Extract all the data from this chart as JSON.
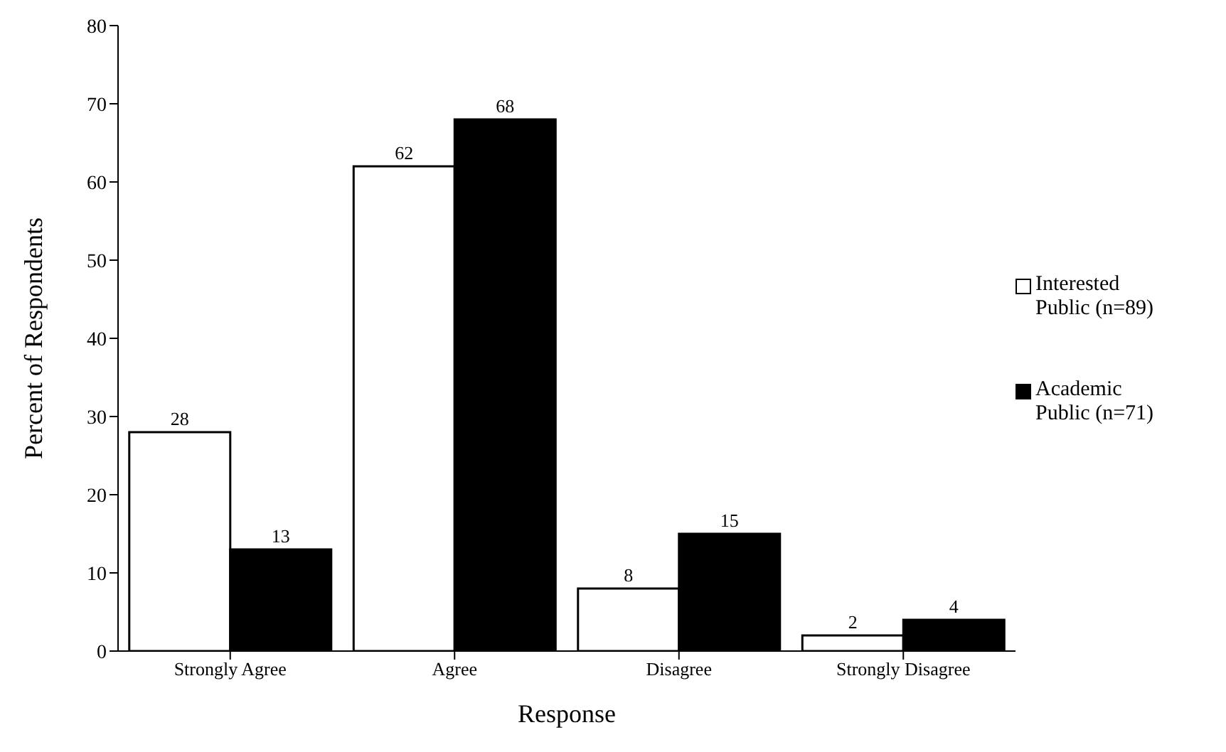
{
  "chart_data": {
    "type": "bar",
    "xlabel": "Response",
    "ylabel": "Percent of Respondents",
    "categories": [
      "Strongly Agree",
      "Agree",
      "Disagree",
      "Strongly Disagree"
    ],
    "series": [
      {
        "name": "Interested Public (n=89)",
        "color": "#ffffff",
        "values": [
          28,
          62,
          8,
          2
        ]
      },
      {
        "name": "Academic Public (n=71)",
        "color": "#000000",
        "values": [
          13,
          68,
          15,
          4
        ]
      }
    ],
    "ylim": [
      0,
      80
    ],
    "yticks": [
      0,
      10,
      20,
      30,
      40,
      50,
      60,
      70,
      80
    ],
    "data_labels": true,
    "grid": false,
    "legend": "right"
  }
}
